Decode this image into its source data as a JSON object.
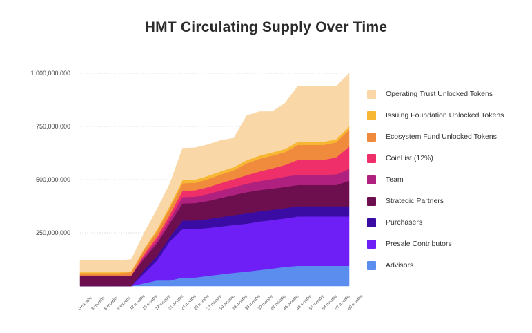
{
  "chart_data": {
    "type": "area",
    "stacked": true,
    "title": "HMT Circulating Supply Over Time",
    "xlabel": "",
    "ylabel": "",
    "ylim": [
      0,
      1000000000
    ],
    "yticks": [
      250000000,
      500000000,
      750000000,
      1000000000
    ],
    "ytick_labels": [
      "250,000,000",
      "500,000,000",
      "750,000,000",
      "1,000,000,000"
    ],
    "grid": true,
    "legend_position": "right",
    "categories": [
      "0 months",
      "3 months",
      "6 months",
      "9 months",
      "12 months",
      "15 months",
      "18 months",
      "21 months",
      "24 months",
      "26 months",
      "27 months",
      "30 months",
      "33 months",
      "36 months",
      "39 months",
      "42 months",
      "45 months",
      "48 months",
      "51 months",
      "54 months",
      "57 months",
      "60 months"
    ],
    "series": [
      {
        "name": "Advisors",
        "color": "#5b8def",
        "values": [
          0,
          0,
          0,
          0,
          0,
          13000000,
          26000000,
          26000000,
          40000000,
          40000000,
          48000000,
          55000000,
          62000000,
          68000000,
          75000000,
          82000000,
          90000000,
          95000000,
          95000000,
          95000000,
          95000000,
          95000000
        ]
      },
      {
        "name": "Presale Contributors",
        "color": "#6e1ff6",
        "values": [
          0,
          0,
          0,
          0,
          0,
          47000000,
          94000000,
          184000000,
          228000000,
          228000000,
          225000000,
          225000000,
          225000000,
          225000000,
          228000000,
          228000000,
          228000000,
          232000000,
          232000000,
          232000000,
          232000000,
          232000000
        ]
      },
      {
        "name": "Purchasers",
        "color": "#3a0ca3",
        "values": [
          0,
          0,
          0,
          0,
          0,
          15000000,
          20000000,
          20000000,
          40000000,
          40000000,
          42000000,
          44000000,
          46000000,
          48000000,
          48000000,
          48000000,
          48000000,
          48000000,
          48000000,
          48000000,
          48000000,
          48000000
        ]
      },
      {
        "name": "Strategic Partners",
        "color": "#6d0f4f",
        "values": [
          50000000,
          50000000,
          50000000,
          50000000,
          50000000,
          55000000,
          60000000,
          65000000,
          80000000,
          82000000,
          85000000,
          90000000,
          95000000,
          100000000,
          100000000,
          100000000,
          100000000,
          100000000,
          100000000,
          100000000,
          100000000,
          120000000
        ]
      },
      {
        "name": "Team",
        "color": "#b0207f",
        "values": [
          0,
          0,
          0,
          0,
          0,
          10000000,
          15000000,
          20000000,
          30000000,
          30000000,
          33000000,
          35000000,
          37000000,
          40000000,
          42000000,
          45000000,
          48000000,
          48000000,
          48000000,
          48000000,
          50000000,
          55000000
        ]
      },
      {
        "name": "CoinList (12%)",
        "color": "#ef2f6a",
        "values": [
          0,
          0,
          0,
          0,
          0,
          10000000,
          15000000,
          20000000,
          30000000,
          30000000,
          32000000,
          35000000,
          37000000,
          40000000,
          45000000,
          50000000,
          55000000,
          70000000,
          70000000,
          70000000,
          80000000,
          105000000
        ]
      },
      {
        "name": "Ecosystem Fund Unlocked Tokens",
        "color": "#f08a3c",
        "values": [
          10000000,
          10000000,
          10000000,
          10000000,
          15000000,
          20000000,
          25000000,
          30000000,
          35000000,
          35000000,
          38000000,
          40000000,
          42000000,
          55000000,
          60000000,
          60000000,
          60000000,
          70000000,
          70000000,
          70000000,
          70000000,
          80000000
        ]
      },
      {
        "name": "Issuing Foundation Unlocked Tokens",
        "color": "#f7b733",
        "values": [
          5000000,
          5000000,
          5000000,
          5000000,
          5000000,
          5000000,
          10000000,
          12000000,
          15000000,
          15000000,
          15000000,
          15000000,
          15000000,
          15000000,
          15000000,
          15000000,
          15000000,
          15000000,
          15000000,
          15000000,
          15000000,
          15000000
        ]
      },
      {
        "name": "Operating Trust Unlocked Tokens",
        "color": "#fad7a6",
        "values": [
          55000000,
          55000000,
          55000000,
          55000000,
          55000000,
          75000000,
          95000000,
          103000000,
          150000000,
          150000000,
          147000000,
          146000000,
          136000000,
          210000000,
          207000000,
          192000000,
          216000000,
          262000000,
          262000000,
          262000000,
          250000000,
          250000000
        ]
      }
    ]
  },
  "legend": {
    "items": [
      {
        "label": "Operating Trust Unlocked Tokens",
        "color": "#fad7a6"
      },
      {
        "label": "Issuing Foundation Unlocked Tokens",
        "color": "#f7b733"
      },
      {
        "label": "Ecosystem Fund Unlocked Tokens",
        "color": "#f08a3c"
      },
      {
        "label": "CoinList (12%)",
        "color": "#ef2f6a"
      },
      {
        "label": "Team",
        "color": "#b0207f"
      },
      {
        "label": "Strategic Partners",
        "color": "#6d0f4f"
      },
      {
        "label": "Purchasers",
        "color": "#3a0ca3"
      },
      {
        "label": "Presale Contributors",
        "color": "#6e1ff6"
      },
      {
        "label": "Advisors",
        "color": "#5b8def"
      }
    ]
  }
}
